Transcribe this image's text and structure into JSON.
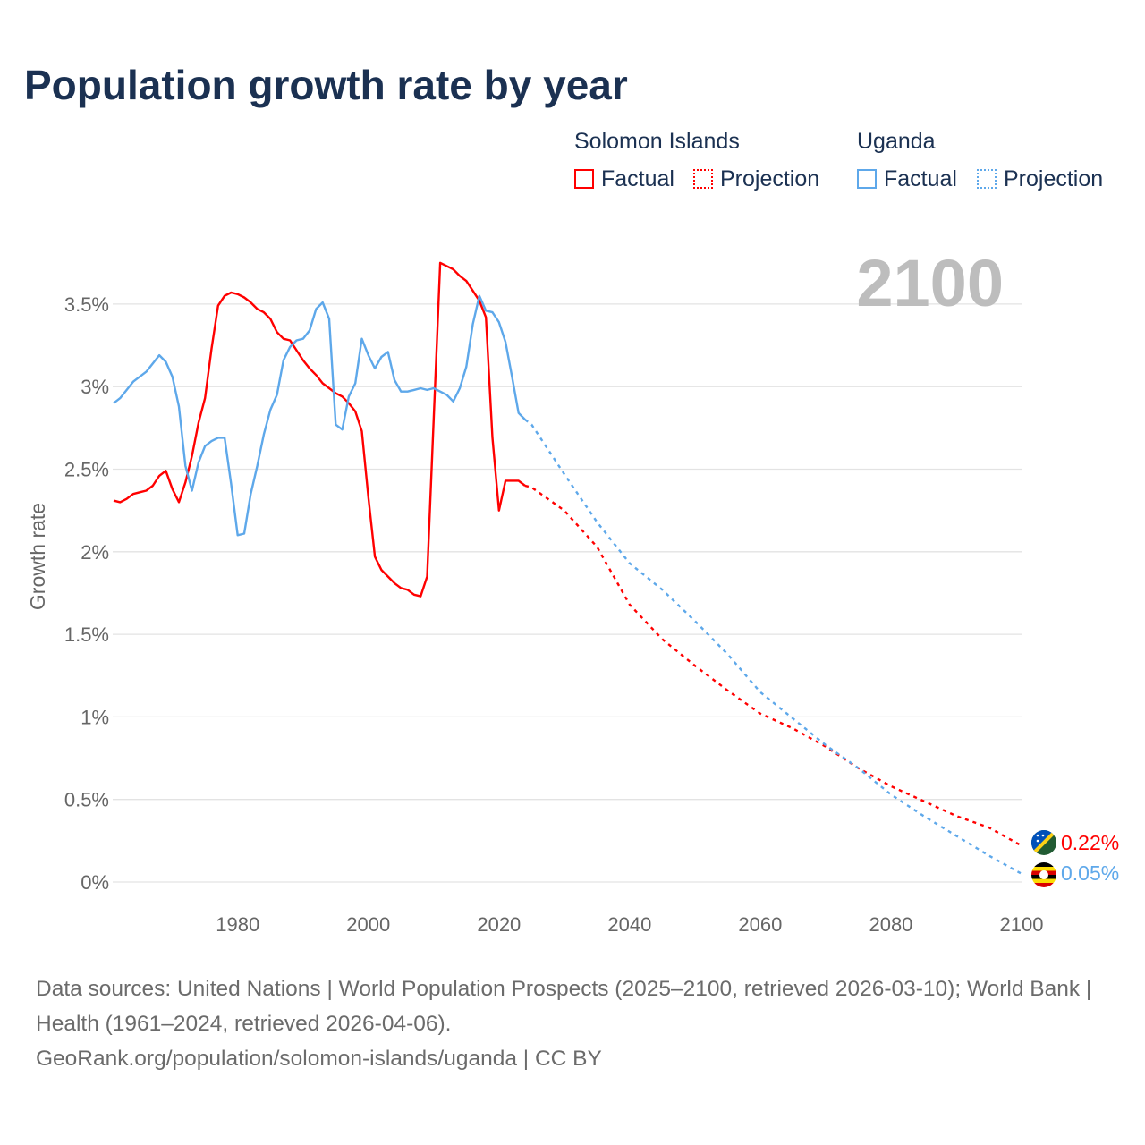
{
  "title": "Population growth rate by year",
  "legend": {
    "groups": [
      {
        "name": "Solomon Islands",
        "factual": "Factual",
        "projection": "Projection",
        "color": "#ff0000"
      },
      {
        "name": "Uganda",
        "factual": "Factual",
        "projection": "Projection",
        "color": "#5ea8ea"
      }
    ]
  },
  "year_label": "2100",
  "end_labels": {
    "solomon": "0.22%",
    "uganda": "0.05%"
  },
  "footer": {
    "sources": "Data sources: United Nations | World Population Prospects (2025–2100, retrieved 2026-03-10); World Bank | Health (1961–2024, retrieved 2026-04-06).",
    "credit": "GeoRank.org/population/solomon-islands/uganda | CC BY"
  },
  "chart_data": {
    "type": "line",
    "title": "Population growth rate by year",
    "xlabel": "",
    "ylabel": "Growth rate",
    "xlim": [
      1961,
      2100
    ],
    "ylim": [
      0,
      3.8
    ],
    "yticks": [
      {
        "v": 0,
        "label": "0%"
      },
      {
        "v": 0.5,
        "label": "0.5%"
      },
      {
        "v": 1,
        "label": "1%"
      },
      {
        "v": 1.5,
        "label": "1.5%"
      },
      {
        "v": 2,
        "label": "2%"
      },
      {
        "v": 2.5,
        "label": "2.5%"
      },
      {
        "v": 3,
        "label": "3%"
      },
      {
        "v": 3.5,
        "label": "3.5%"
      }
    ],
    "xticks": [
      {
        "v": 1980,
        "label": "1980"
      },
      {
        "v": 2000,
        "label": "2000"
      },
      {
        "v": 2020,
        "label": "2020"
      },
      {
        "v": 2040,
        "label": "2040"
      },
      {
        "v": 2060,
        "label": "2060"
      },
      {
        "v": 2080,
        "label": "2080"
      },
      {
        "v": 2100,
        "label": "2100"
      }
    ],
    "grid": true,
    "series": [
      {
        "name": "Solomon Islands – Factual",
        "color": "#ff0000",
        "style": "solid",
        "x": [
          1961,
          1962,
          1963,
          1964,
          1965,
          1966,
          1967,
          1968,
          1969,
          1970,
          1971,
          1972,
          1973,
          1974,
          1975,
          1976,
          1977,
          1978,
          1979,
          1980,
          1981,
          1982,
          1983,
          1984,
          1985,
          1986,
          1987,
          1988,
          1989,
          1990,
          1991,
          1992,
          1993,
          1994,
          1995,
          1996,
          1997,
          1998,
          1999,
          2000,
          2001,
          2002,
          2003,
          2004,
          2005,
          2006,
          2007,
          2008,
          2009,
          2010,
          2011,
          2012,
          2013,
          2014,
          2015,
          2016,
          2017,
          2018,
          2019,
          2020,
          2021,
          2022,
          2023,
          2024
        ],
        "values": [
          2.31,
          2.3,
          2.32,
          2.35,
          2.36,
          2.37,
          2.4,
          2.46,
          2.49,
          2.38,
          2.3,
          2.42,
          2.58,
          2.78,
          2.93,
          3.23,
          3.49,
          3.55,
          3.57,
          3.56,
          3.54,
          3.51,
          3.47,
          3.45,
          3.41,
          3.33,
          3.29,
          3.28,
          3.22,
          3.16,
          3.11,
          3.07,
          3.02,
          2.99,
          2.96,
          2.94,
          2.9,
          2.85,
          2.73,
          2.33,
          1.97,
          1.89,
          1.85,
          1.81,
          1.78,
          1.77,
          1.74,
          1.73,
          1.85,
          2.8,
          3.75,
          3.73,
          3.71,
          3.67,
          3.64,
          3.58,
          3.52,
          3.42,
          2.69,
          2.25,
          2.43,
          2.43,
          2.43,
          2.4
        ]
      },
      {
        "name": "Solomon Islands – Projection",
        "color": "#ff0000",
        "style": "dotted",
        "x": [
          2024,
          2025,
          2030,
          2035,
          2040,
          2045,
          2050,
          2055,
          2060,
          2065,
          2070,
          2075,
          2080,
          2085,
          2090,
          2095,
          2100
        ],
        "values": [
          2.4,
          2.39,
          2.25,
          2.03,
          1.68,
          1.47,
          1.31,
          1.16,
          1.02,
          0.93,
          0.82,
          0.69,
          0.58,
          0.49,
          0.4,
          0.33,
          0.22
        ]
      },
      {
        "name": "Uganda – Factual",
        "color": "#5ea8ea",
        "style": "solid",
        "x": [
          1961,
          1962,
          1964,
          1966,
          1968,
          1969,
          1970,
          1971,
          1972,
          1973,
          1974,
          1975,
          1976,
          1977,
          1978,
          1979,
          1980,
          1981,
          1982,
          1983,
          1984,
          1985,
          1986,
          1987,
          1988,
          1989,
          1990,
          1991,
          1992,
          1993,
          1994,
          1995,
          1996,
          1997,
          1998,
          1999,
          2000,
          2001,
          2002,
          2003,
          2004,
          2005,
          2006,
          2007,
          2008,
          2009,
          2010,
          2011,
          2012,
          2013,
          2014,
          2015,
          2016,
          2017,
          2018,
          2019,
          2020,
          2021,
          2022,
          2023,
          2024
        ],
        "values": [
          2.9,
          2.93,
          3.03,
          3.09,
          3.19,
          3.15,
          3.06,
          2.88,
          2.52,
          2.37,
          2.54,
          2.64,
          2.67,
          2.69,
          2.69,
          2.41,
          2.1,
          2.11,
          2.35,
          2.52,
          2.71,
          2.86,
          2.95,
          3.16,
          3.24,
          3.28,
          3.29,
          3.34,
          3.47,
          3.51,
          3.41,
          2.77,
          2.74,
          2.94,
          3.02,
          3.29,
          3.19,
          3.11,
          3.18,
          3.21,
          3.04,
          2.97,
          2.97,
          2.98,
          2.99,
          2.98,
          2.99,
          2.97,
          2.95,
          2.91,
          2.99,
          3.12,
          3.38,
          3.55,
          3.46,
          3.45,
          3.39,
          3.27,
          3.06,
          2.84,
          2.8
        ]
      },
      {
        "name": "Uganda – Projection",
        "color": "#5ea8ea",
        "style": "dotted",
        "x": [
          2024,
          2025,
          2030,
          2035,
          2040,
          2045,
          2050,
          2055,
          2060,
          2065,
          2070,
          2075,
          2080,
          2085,
          2090,
          2095,
          2100
        ],
        "values": [
          2.8,
          2.77,
          2.47,
          2.18,
          1.93,
          1.77,
          1.58,
          1.38,
          1.15,
          0.99,
          0.83,
          0.69,
          0.53,
          0.4,
          0.28,
          0.16,
          0.05
        ]
      }
    ]
  }
}
